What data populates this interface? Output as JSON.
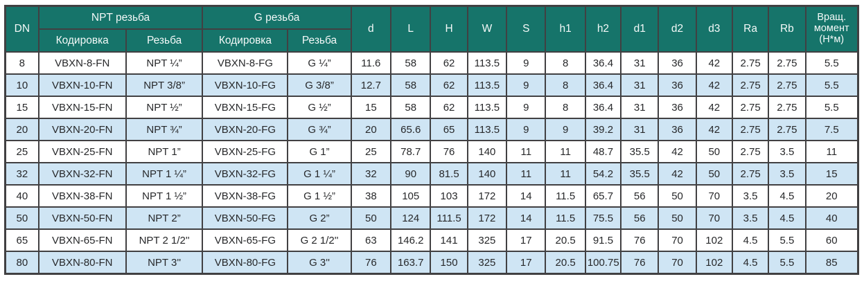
{
  "colors": {
    "header_bg": "#16746a",
    "header_text": "#f4f9f8",
    "row_alt_bg": "#cfe5f4",
    "border": "#414042",
    "body_text": "#27282a"
  },
  "table": {
    "header": {
      "dn": "DN",
      "npt_group": "NPT резьба",
      "g_group": "G резьба",
      "npt_coding": "Кодировка",
      "npt_thread": "Резьба",
      "g_coding": "Кодировка",
      "g_thread": "Резьба",
      "dims": [
        "d",
        "L",
        "H",
        "W",
        "S",
        "h1",
        "h2",
        "d1",
        "d2",
        "d3",
        "Ra",
        "Rb"
      ],
      "torque": "Вращ.\nмомент\n(Н*м)"
    },
    "rows": [
      [
        "8",
        "VBXN-8-FN",
        "NPT ¼”",
        "VBXN-8-FG",
        "G ¼”",
        "11.6",
        "58",
        "62",
        "113.5",
        "9",
        "8",
        "36.4",
        "31",
        "36",
        "42",
        "2.75",
        "2.75",
        "5.5"
      ],
      [
        "10",
        "VBXN-10-FN",
        "NPT 3/8”",
        "VBXN-10-FG",
        "G 3/8”",
        "12.7",
        "58",
        "62",
        "113.5",
        "9",
        "8",
        "36.4",
        "31",
        "36",
        "42",
        "2.75",
        "2.75",
        "5.5"
      ],
      [
        "15",
        "VBXN-15-FN",
        "NPT ½”",
        "VBXN-15-FG",
        "G ½”",
        "15",
        "58",
        "62",
        "113.5",
        "9",
        "8",
        "36.4",
        "31",
        "36",
        "42",
        "2.75",
        "2.75",
        "5.5"
      ],
      [
        "20",
        "VBXN-20-FN",
        "NPT ¾”",
        "VBXN-20-FG",
        "G ¾”",
        "20",
        "65.6",
        "65",
        "113.5",
        "9",
        "9",
        "39.2",
        "31",
        "36",
        "42",
        "2.75",
        "2.75",
        "7.5"
      ],
      [
        "25",
        "VBXN-25-FN",
        "NPT 1”",
        "VBXN-25-FG",
        "G 1”",
        "25",
        "78.7",
        "76",
        "140",
        "11",
        "11",
        "48.7",
        "35.5",
        "42",
        "50",
        "2.75",
        "3.5",
        "11"
      ],
      [
        "32",
        "VBXN-32-FN",
        "NPT 1 ¼”",
        "VBXN-32-FG",
        "G 1 ¼”",
        "32",
        "90",
        "81.5",
        "140",
        "11",
        "11",
        "54.2",
        "35.5",
        "42",
        "50",
        "2.75",
        "3.5",
        "15"
      ],
      [
        "40",
        "VBXN-38-FN",
        "NPT 1 ½”",
        "VBXN-38-FG",
        "G 1 ½”",
        "38",
        "105",
        "103",
        "172",
        "14",
        "11.5",
        "65.7",
        "56",
        "50",
        "70",
        "3.5",
        "4.5",
        "20"
      ],
      [
        "50",
        "VBXN-50-FN",
        "NPT 2”",
        "VBXN-50-FG",
        "G 2”",
        "50",
        "124",
        "111.5",
        "172",
        "14",
        "11.5",
        "75.5",
        "56",
        "50",
        "70",
        "3.5",
        "4.5",
        "40"
      ],
      [
        "65",
        "VBXN-65-FN",
        "NPT 2 1/2''",
        "VBXN-65-FG",
        "G 2 1/2''",
        "63",
        "146.2",
        "141",
        "325",
        "17",
        "20.5",
        "91.5",
        "76",
        "70",
        "102",
        "4.5",
        "5.5",
        "60"
      ],
      [
        "80",
        "VBXN-80-FN",
        "NPT 3''",
        "VBXN-80-FG",
        "G 3''",
        "76",
        "163.7",
        "150",
        "325",
        "17",
        "20.5",
        "100.75",
        "76",
        "70",
        "102",
        "4.5",
        "5.5",
        "85"
      ]
    ]
  }
}
